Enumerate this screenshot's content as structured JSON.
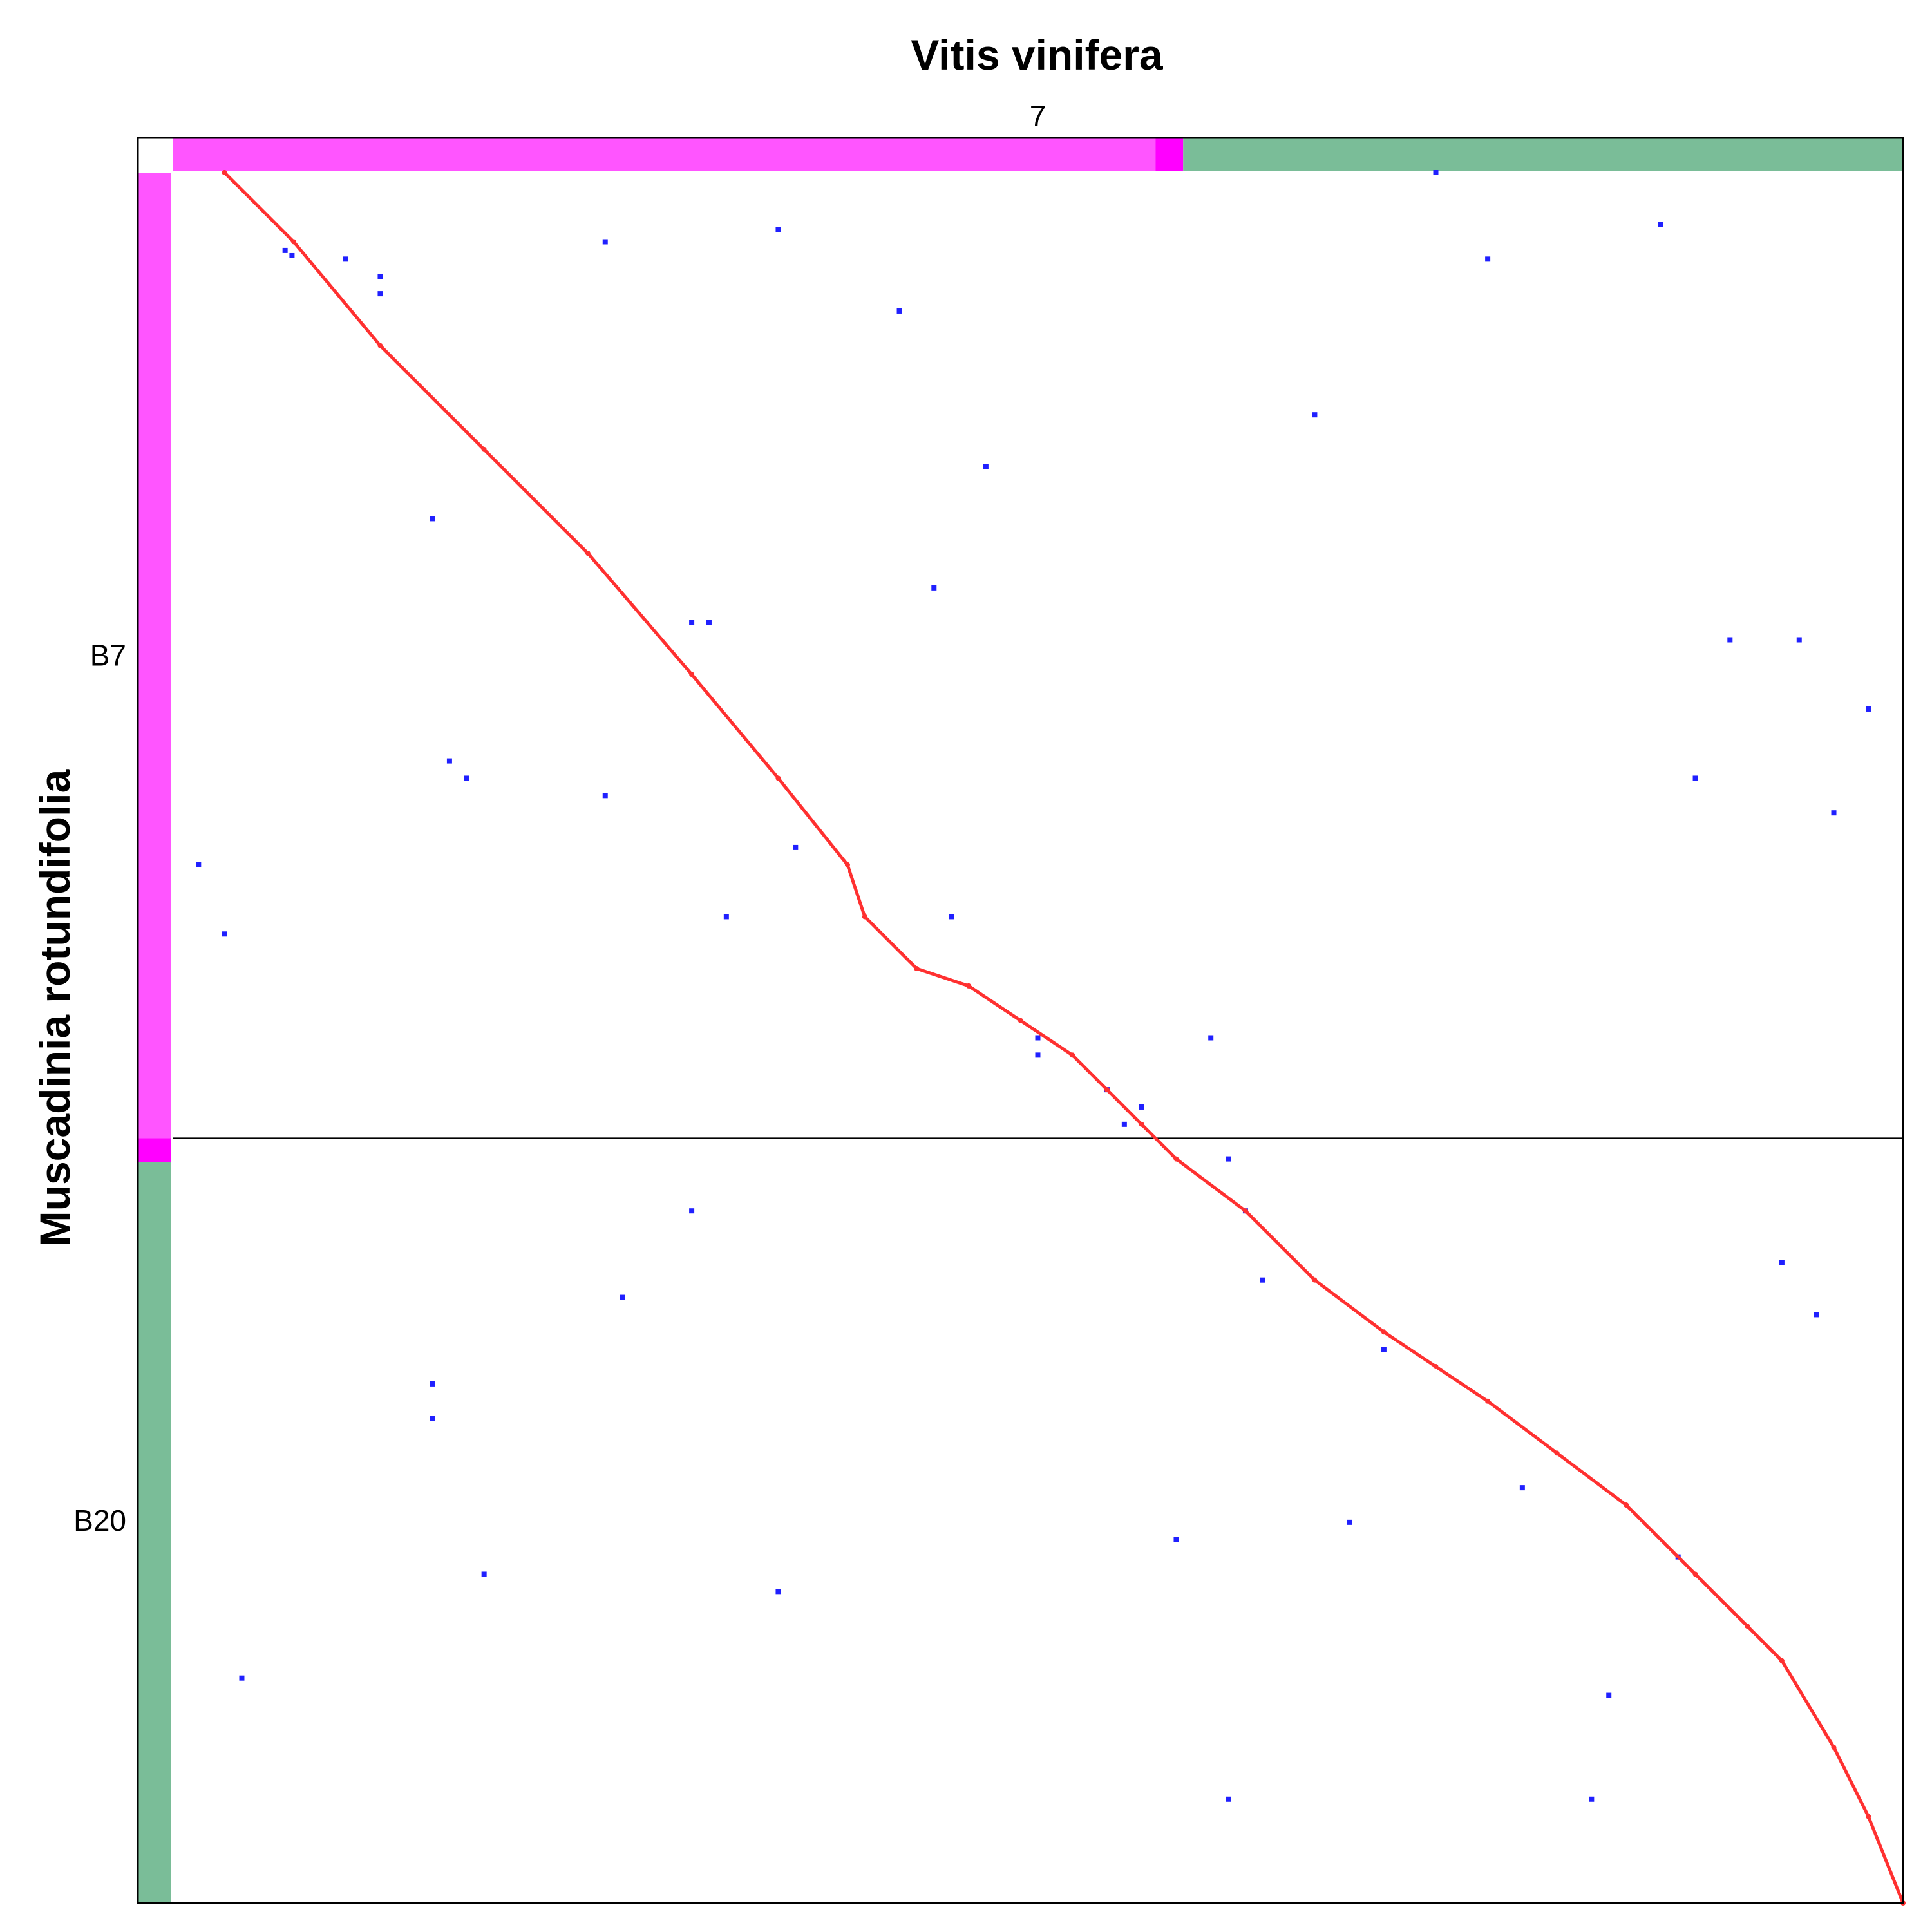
{
  "chart_data": {
    "type": "scatter",
    "title": "Vitis vinifera",
    "xlabel": "",
    "ylabel": "Muscadinia rotundifolia",
    "x_chromosomes": [
      {
        "label": "7",
        "start": 0.0,
        "end": 1.0
      }
    ],
    "y_chromosomes": [
      {
        "label": "B7",
        "start": 0.0,
        "end": 0.558
      },
      {
        "label": "B20",
        "start": 0.558,
        "end": 1.0
      }
    ],
    "x_karyotype_bands": [
      {
        "start": 0.0,
        "end": 0.568,
        "color": "#ff55ff"
      },
      {
        "start": 0.568,
        "end": 0.584,
        "color": "#ff00ff"
      },
      {
        "start": 0.584,
        "end": 1.0,
        "color": "#7abd98"
      }
    ],
    "y_karyotype_bands": [
      {
        "start": 0.0,
        "end": 0.558,
        "color": "#ff55ff"
      },
      {
        "start": 0.558,
        "end": 0.572,
        "color": "#ff00ff"
      },
      {
        "start": 0.572,
        "end": 1.0,
        "color": "#7abd98"
      }
    ],
    "xlim": [
      0,
      1
    ],
    "ylim": [
      0,
      1
    ],
    "grid": false,
    "legend": "none",
    "colors": {
      "synteny_diagonal": "#ff3030",
      "other_hits": "#2020ff"
    },
    "series": [
      {
        "kind": "synteny_diagonal",
        "points": [
          [
            0.03,
            0.0
          ],
          [
            0.07,
            0.04
          ],
          [
            0.12,
            0.1
          ],
          [
            0.18,
            0.16
          ],
          [
            0.24,
            0.22
          ],
          [
            0.3,
            0.29
          ],
          [
            0.35,
            0.35
          ],
          [
            0.39,
            0.4
          ],
          [
            0.4,
            0.43
          ],
          [
            0.43,
            0.46
          ],
          [
            0.46,
            0.47
          ],
          [
            0.49,
            0.49
          ],
          [
            0.52,
            0.51
          ],
          [
            0.54,
            0.53
          ],
          [
            0.56,
            0.55
          ],
          [
            0.58,
            0.57
          ],
          [
            0.62,
            0.6
          ],
          [
            0.66,
            0.64
          ],
          [
            0.7,
            0.67
          ],
          [
            0.73,
            0.69
          ],
          [
            0.76,
            0.71
          ],
          [
            0.8,
            0.74
          ],
          [
            0.84,
            0.77
          ],
          [
            0.88,
            0.81
          ],
          [
            0.91,
            0.84
          ],
          [
            0.93,
            0.86
          ],
          [
            0.96,
            0.91
          ],
          [
            0.98,
            0.95
          ],
          [
            1.0,
            1.0
          ]
        ]
      },
      {
        "kind": "other_hits",
        "points": [
          [
            0.065,
            0.045
          ],
          [
            0.069,
            0.048
          ],
          [
            0.35,
            0.033
          ],
          [
            0.86,
            0.03
          ],
          [
            0.73,
            0.0
          ],
          [
            0.12,
            0.07
          ],
          [
            0.32,
            0.43
          ],
          [
            0.17,
            0.35
          ],
          [
            0.47,
            0.17
          ],
          [
            0.44,
            0.24
          ],
          [
            0.66,
            0.14
          ],
          [
            0.9,
            0.27
          ],
          [
            0.98,
            0.31
          ],
          [
            0.015,
            0.4
          ],
          [
            0.03,
            0.44
          ],
          [
            0.16,
            0.34
          ],
          [
            0.25,
            0.36
          ],
          [
            0.1,
            0.05
          ],
          [
            0.5,
            0.5
          ],
          [
            0.5,
            0.51
          ],
          [
            0.54,
            0.53
          ],
          [
            0.56,
            0.54
          ],
          [
            0.55,
            0.55
          ],
          [
            0.62,
            0.6
          ],
          [
            0.31,
            0.26
          ],
          [
            0.25,
            0.04
          ],
          [
            0.76,
            0.05
          ],
          [
            0.94,
            0.27
          ],
          [
            0.96,
            0.37
          ],
          [
            0.83,
            0.88
          ],
          [
            0.7,
            0.68
          ],
          [
            0.82,
            0.94
          ],
          [
            0.3,
            0.6
          ],
          [
            0.26,
            0.65
          ],
          [
            0.63,
            0.64
          ],
          [
            0.15,
            0.72
          ],
          [
            0.04,
            0.87
          ],
          [
            0.68,
            0.78
          ],
          [
            0.87,
            0.8
          ],
          [
            0.61,
            0.94
          ],
          [
            0.88,
            0.35
          ],
          [
            0.6,
            0.5
          ],
          [
            0.45,
            0.43
          ],
          [
            0.36,
            0.39
          ],
          [
            0.61,
            0.57
          ],
          [
            0.78,
            0.76
          ],
          [
            0.3,
            0.26
          ],
          [
            0.12,
            0.06
          ],
          [
            0.15,
            0.7
          ],
          [
            0.35,
            0.82
          ],
          [
            0.15,
            0.2
          ],
          [
            0.42,
            0.08
          ],
          [
            0.93,
            0.63
          ],
          [
            0.95,
            0.66
          ],
          [
            0.18,
            0.81
          ],
          [
            0.58,
            0.79
          ]
        ]
      }
    ]
  }
}
